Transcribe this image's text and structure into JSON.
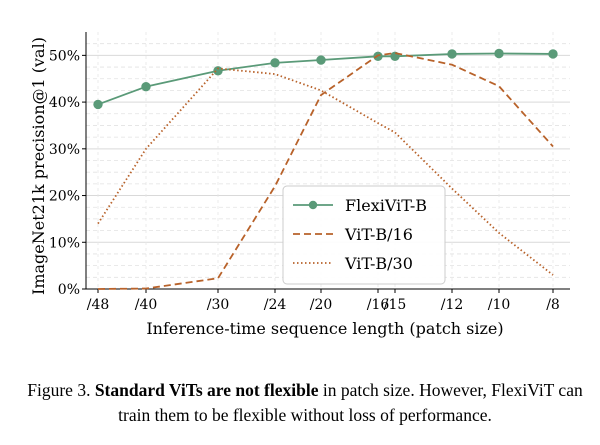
{
  "chart_data": {
    "type": "line",
    "categories": [
      "/48",
      "/40",
      "/30",
      "/24",
      "/20",
      "/16",
      "/15",
      "/12",
      "/10",
      "/8"
    ],
    "ylabel": "ImageNet21k precision@1 (val)",
    "xlabel": "Inference-time sequence length (patch size)",
    "ylim": [
      0,
      55
    ],
    "yticks": [
      0,
      10,
      20,
      30,
      40,
      50
    ],
    "ytick_labels": [
      "0%",
      "10%",
      "20%",
      "30%",
      "40%",
      "50%"
    ],
    "grid": true,
    "legend_position": "center-right",
    "series": [
      {
        "name": "FlexiViT-B",
        "style": "solid-markers",
        "color": "#5a9a78",
        "values": [
          39.5,
          43.3,
          46.7,
          48.4,
          49.0,
          49.8,
          49.8,
          50.3,
          50.4,
          50.3
        ]
      },
      {
        "name": "ViT-B/16",
        "style": "dashed",
        "color": "#b8622a",
        "values": [
          0.0,
          0.1,
          2.3,
          22.0,
          41.5,
          50.0,
          50.5,
          48.0,
          43.4,
          30.5
        ]
      },
      {
        "name": "ViT-B/30",
        "style": "dotted",
        "color": "#b8622a",
        "values": [
          14.0,
          30.0,
          47.2,
          46.0,
          42.5,
          35.5,
          33.5,
          21.5,
          12.0,
          3.0
        ]
      }
    ]
  },
  "caption": {
    "prefix": "Figure 3. ",
    "bold": "Standard ViTs are not flexible",
    "rest": " in patch size. However, FlexiViT can train them to be flexible without loss of performance."
  }
}
